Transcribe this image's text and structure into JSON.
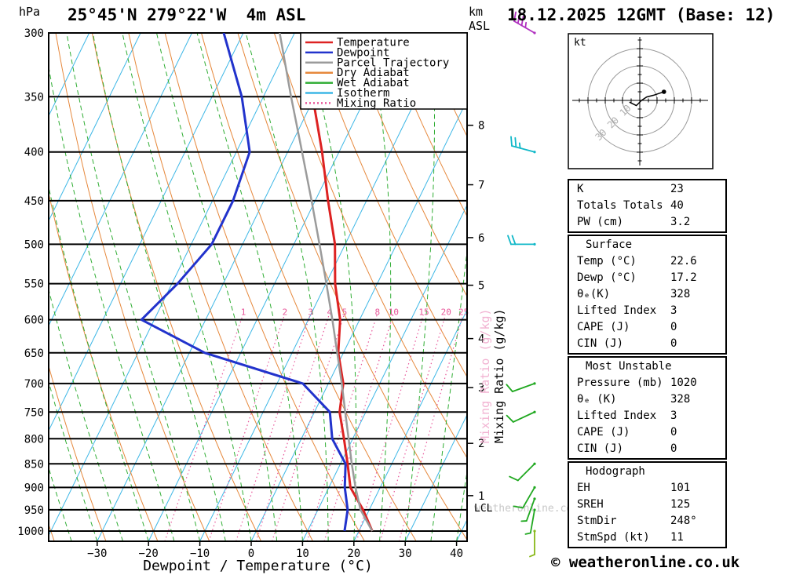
{
  "header": {
    "station_title": "25°45'N 279°22'W  4m ASL",
    "datetime_title": "18.12.2025 12GMT (Base: 12)"
  },
  "axes": {
    "pressure_unit": "hPa",
    "altitude_unit": "km",
    "altitude_unit2": "ASL",
    "xlabel": "Dewpoint / Temperature (°C)",
    "mixing_ratio_label": "Mixing Ratio (g/kg)",
    "lcl_label": "LCL",
    "pressure_ticks": [
      300,
      350,
      400,
      450,
      500,
      550,
      600,
      650,
      700,
      750,
      800,
      850,
      900,
      950,
      1000
    ],
    "temp_ticks": [
      {
        "value": -30,
        "label": "−30"
      },
      {
        "value": -20,
        "label": "−20"
      },
      {
        "value": -10,
        "label": "−10"
      },
      {
        "value": 0,
        "label": "0"
      },
      {
        "value": 10,
        "label": "10"
      },
      {
        "value": 20,
        "label": "20"
      },
      {
        "value": 30,
        "label": "30"
      },
      {
        "value": 40,
        "label": "40"
      }
    ],
    "km_ticks": [
      {
        "km": 1,
        "hPa": 918
      },
      {
        "km": 2,
        "hPa": 809
      },
      {
        "km": 3,
        "hPa": 707
      },
      {
        "km": 4,
        "hPa": 628
      },
      {
        "km": 5,
        "hPa": 552
      },
      {
        "km": 6,
        "hPa": 492
      },
      {
        "km": 7,
        "hPa": 433
      },
      {
        "km": 8,
        "hPa": 375
      }
    ]
  },
  "legend": [
    {
      "label": "Temperature",
      "color": "#dd2222",
      "dash": "none"
    },
    {
      "label": "Dewpoint",
      "color": "#2233cc",
      "dash": "none"
    },
    {
      "label": "Parcel Trajectory",
      "color": "#9b9b9b",
      "dash": "none"
    },
    {
      "label": "Dry Adiabat",
      "color": "#e6883c",
      "dash": "none"
    },
    {
      "label": "Wet Adiabat",
      "color": "#2fad33",
      "dash": "none"
    },
    {
      "label": "Isotherm",
      "color": "#3db7e6",
      "dash": "none"
    },
    {
      "label": "Mixing Ratio",
      "color": "#e8579a",
      "dash": "2 3"
    }
  ],
  "chart_data": {
    "type": "line",
    "variant": "skew-t-log-p-sounding",
    "title": "25°45'N 279°22'W 4m ASL — 18.12.2025 12GMT (Base: 12)",
    "xlabel": "Dewpoint / Temperature (°C)",
    "ylabel": "Pressure (hPa)",
    "x_range_degC": [
      -39,
      42
    ],
    "pressure_range_hPa": [
      300,
      1025
    ],
    "grid": "skew-t background: isotherms, dry/wet adiabats, mixing ratio lines, isobars",
    "pressure_levels": [
      1000,
      950,
      900,
      850,
      800,
      750,
      700,
      650,
      600,
      550,
      500,
      450,
      400,
      350,
      300
    ],
    "series": [
      {
        "name": "Temperature",
        "color": "#dd2222",
        "values_degC": [
          22.6,
          18.8,
          14.2,
          11.4,
          8.3,
          4.9,
          2.9,
          -1.0,
          -3.8,
          -8.2,
          -12.0,
          -17.5,
          -23.3,
          -30.4,
          -38.5
        ]
      },
      {
        "name": "Dewpoint",
        "color": "#2233cc",
        "values_degC": [
          17.2,
          15.8,
          13.1,
          11.0,
          6.0,
          3.0,
          -5.0,
          -27.0,
          -42.5,
          -38.9,
          -36.0,
          -36.0,
          -37.4,
          -44.2,
          -53.8
        ]
      },
      {
        "name": "Parcel Trajectory",
        "color": "#9b9b9b",
        "values_degC": [
          22.6,
          18.3,
          15.2,
          12.2,
          9.2,
          6.0,
          2.6,
          -1.2,
          -5.3,
          -9.9,
          -15.0,
          -20.7,
          -27.2,
          -34.6,
          -42.9
        ]
      }
    ],
    "mixing_ratio_lines_g_kg": [
      1,
      2,
      3,
      4,
      5,
      8,
      10,
      15,
      20,
      25
    ],
    "lcl_hPa": 955,
    "colors": {
      "isotherm": "#3db7e6",
      "dry_adiabat": "#e6883c",
      "wet_adiabat": "#2fad33",
      "mixing_ratio": "#e8579a",
      "isobar": "#000000",
      "background": "#ffffff",
      "watermark_gray": "#c8c8c8",
      "watermark_pink": "#f2b3d2"
    }
  },
  "wind_barbs": [
    {
      "hPa": 300,
      "dir_deg": 300,
      "speed_kt": 35,
      "color": "#b030c0"
    },
    {
      "hPa": 400,
      "dir_deg": 285,
      "speed_kt": 25,
      "color": "#10b8c8"
    },
    {
      "hPa": 500,
      "dir_deg": 270,
      "speed_kt": 20,
      "color": "#10b8c8"
    },
    {
      "hPa": 700,
      "dir_deg": 250,
      "speed_kt": 10,
      "color": "#20a820"
    },
    {
      "hPa": 750,
      "dir_deg": 245,
      "speed_kt": 10,
      "color": "#20a820"
    },
    {
      "hPa": 850,
      "dir_deg": 225,
      "speed_kt": 10,
      "color": "#20a820"
    },
    {
      "hPa": 900,
      "dir_deg": 210,
      "speed_kt": 10,
      "color": "#20a820"
    },
    {
      "hPa": 925,
      "dir_deg": 200,
      "speed_kt": 5,
      "color": "#20a820"
    },
    {
      "hPa": 950,
      "dir_deg": 190,
      "speed_kt": 5,
      "color": "#20a820"
    },
    {
      "hPa": 1000,
      "dir_deg": 180,
      "speed_kt": 5,
      "color": "#88b818"
    }
  ],
  "hodograph": {
    "unit_label": "kt",
    "rings_kt": [
      10,
      20,
      30
    ],
    "ring_labels": [
      "10",
      "20",
      "30"
    ],
    "trace_kt": [
      [
        -6,
        -1
      ],
      [
        -2,
        -3
      ],
      [
        1,
        0
      ],
      [
        4,
        2
      ],
      [
        8,
        3
      ],
      [
        11,
        4
      ],
      [
        14,
        5
      ]
    ],
    "storm_dir_deg": 248,
    "storm_speed_kt": 11
  },
  "indices": {
    "tables": [
      {
        "header": "",
        "rows": [
          [
            "K",
            "23"
          ],
          [
            "Totals Totals",
            "40"
          ],
          [
            "PW (cm)",
            "3.2"
          ]
        ]
      },
      {
        "header": "Surface",
        "rows": [
          [
            "Temp (°C)",
            "22.6"
          ],
          [
            "Dewp (°C)",
            "17.2"
          ],
          [
            "θₑ(K)",
            "328"
          ],
          [
            "Lifted Index",
            "3"
          ],
          [
            "CAPE (J)",
            "0"
          ],
          [
            "CIN (J)",
            "0"
          ]
        ]
      },
      {
        "header": "Most Unstable",
        "rows": [
          [
            "Pressure (mb)",
            "1020"
          ],
          [
            "θₑ (K)",
            "328"
          ],
          [
            "Lifted Index",
            "3"
          ],
          [
            "CAPE (J)",
            "0"
          ],
          [
            "CIN (J)",
            "0"
          ]
        ]
      },
      {
        "header": "Hodograph",
        "rows": [
          [
            "EH",
            "101"
          ],
          [
            "SREH",
            "125"
          ],
          [
            "StmDir",
            "248°"
          ],
          [
            "StmSpd (kt)",
            "11"
          ]
        ]
      }
    ]
  },
  "watermark": {
    "text": "weatheronline.co.uk"
  },
  "footer": {
    "copyright": "© weatheronline.co.uk"
  }
}
